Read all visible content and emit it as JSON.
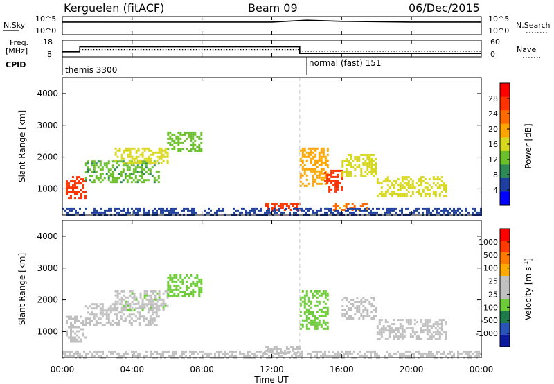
{
  "header": {
    "station": "Kerguelen (fitACF)",
    "beam": "Beam 09",
    "date": "06/Dec/2015"
  },
  "top_panels": {
    "nsky_label": "N.Sky",
    "nsearch_label": "N.Search",
    "nsky_tick_top": "10^5",
    "nsky_tick_bottom": "10^0",
    "nsearch_tick_top": "10^5",
    "nsearch_tick_bottom": "10^0",
    "freq_label_line1": "Freq.",
    "freq_label_line2": "[MHz]",
    "freq_tick_top": "18",
    "freq_tick_bottom": "8",
    "nave_label": "Nave",
    "nave_tick_top": "60",
    "nave_tick_bottom": "0",
    "cpid_label": "CPID",
    "cpid_mode1": "themis 3300",
    "cpid_mode2": "normal (fast) 151"
  },
  "x_axis": {
    "label": "Time UT",
    "ticks": [
      "00:00",
      "04:00",
      "08:00",
      "12:00",
      "16:00",
      "20:00",
      "00:00"
    ]
  },
  "y_axis": {
    "label": "Slant Range [km]",
    "ticks": [
      "1000",
      "2000",
      "3000",
      "4000"
    ]
  },
  "power_colorbar": {
    "label": "Power [dB]",
    "ticks": [
      "4",
      "8",
      "12",
      "16",
      "20",
      "24",
      "28"
    ]
  },
  "velocity_colorbar": {
    "label": "Velocity [m s",
    "label_sup": "-1",
    "label_end": "]",
    "ticks": [
      "1000",
      "500",
      "100",
      "25",
      "-25",
      "-100",
      "-500",
      "-1000"
    ]
  },
  "colors": {
    "power_scale": [
      "#0000ff",
      "#1f3fa0",
      "#2e8b57",
      "#6bbf2b",
      "#d8d820",
      "#ffa500",
      "#ff6a00",
      "#ff3300",
      "#ff0000"
    ],
    "velocity_scale": [
      "#0b1a9c",
      "#2a53b8",
      "#1c7a4b",
      "#6ecc3a",
      "#c0c0c0",
      "#c0c0c0",
      "#ffaa00",
      "#ff7a00",
      "#ff3a00",
      "#ff0000"
    ],
    "ground_scatter": "#a0a0a0"
  },
  "chart_data": [
    {
      "type": "line",
      "title": "N.Sky / N.Search",
      "x_unit": "hours UT",
      "x_range": [
        0,
        24
      ],
      "y_scale": "log",
      "ylim": [
        1,
        100000
      ],
      "series": [
        {
          "name": "N.Sky",
          "x": [
            0,
            2,
            4,
            8,
            12,
            14,
            16,
            20,
            24
          ],
          "y": [
            3000,
            3000,
            3000,
            3000,
            3000,
            10000,
            5000,
            3000,
            3000
          ]
        },
        {
          "name": "N.Search",
          "x": [
            0,
            24
          ],
          "y": [
            1,
            1
          ]
        }
      ]
    },
    {
      "type": "line",
      "title": "Freq. [MHz] / Nave",
      "x_unit": "hours UT",
      "x_range": [
        0,
        24
      ],
      "ylim_freq": [
        8,
        18
      ],
      "ylim_nave": [
        0,
        60
      ],
      "series": [
        {
          "name": "Freq.",
          "x": [
            0,
            1,
            1,
            13.6,
            13.6,
            24
          ],
          "y": [
            11,
            11,
            14,
            14,
            10,
            10
          ]
        },
        {
          "name": "Nave",
          "x": [
            0,
            1,
            1,
            13.6,
            13.6,
            24
          ],
          "y": [
            18,
            18,
            26,
            26,
            20,
            20
          ]
        }
      ]
    },
    {
      "type": "heatmap",
      "title": "Power [dB]",
      "x_unit": "hours UT",
      "x_range": [
        0,
        24
      ],
      "ylim": [
        180,
        4500
      ],
      "colorbar_range": [
        0,
        30
      ],
      "regions": [
        {
          "t0": 0.2,
          "t1": 1.3,
          "r0": 700,
          "r1": 1400,
          "value": 26
        },
        {
          "t0": 1.3,
          "t1": 5.5,
          "r0": 1200,
          "r1": 1900,
          "value": 10
        },
        {
          "t0": 3.0,
          "t1": 6.0,
          "r0": 1800,
          "r1": 2300,
          "value": 14
        },
        {
          "t0": 6.0,
          "t1": 8.0,
          "r0": 2200,
          "r1": 2800,
          "value": 12
        },
        {
          "t0": 11.5,
          "t1": 13.6,
          "r0": 300,
          "r1": 550,
          "value": 26
        },
        {
          "t0": 13.6,
          "t1": 15.2,
          "r0": 1100,
          "r1": 2300,
          "value": 18
        },
        {
          "t0": 15.0,
          "t1": 16.0,
          "r0": 900,
          "r1": 1600,
          "value": 24
        },
        {
          "t0": 16.0,
          "t1": 18.0,
          "r0": 1400,
          "r1": 2100,
          "value": 14
        },
        {
          "t0": 18.0,
          "t1": 22.0,
          "r0": 800,
          "r1": 1400,
          "value": 16
        },
        {
          "t0": 15.5,
          "t1": 17.5,
          "r0": 350,
          "r1": 550,
          "value": 20
        },
        {
          "t0": 0.0,
          "t1": 24.0,
          "r0": 180,
          "r1": 400,
          "value": 6
        }
      ]
    },
    {
      "type": "heatmap",
      "title": "Velocity [m s-1]",
      "x_unit": "hours UT",
      "x_range": [
        0,
        24
      ],
      "ylim": [
        180,
        4500
      ],
      "colorbar_range": [
        -1000,
        1000
      ],
      "regions": [
        {
          "t0": 0.2,
          "t1": 1.3,
          "r0": 700,
          "r1": 1500,
          "value": 80
        },
        {
          "t0": 1.3,
          "t1": 5.5,
          "r0": 1200,
          "r1": 1900,
          "value": -100
        },
        {
          "t0": 3.0,
          "t1": 6.0,
          "r0": 1700,
          "r1": 2300,
          "value": -200
        },
        {
          "t0": 6.0,
          "t1": 8.0,
          "r0": 2100,
          "r1": 2800,
          "value": -300
        },
        {
          "t0": 11.5,
          "t1": 13.6,
          "r0": 300,
          "r1": 550,
          "value": -80
        },
        {
          "t0": 13.6,
          "t1": 15.2,
          "r0": 1100,
          "r1": 2300,
          "value": -300
        },
        {
          "t0": 16.0,
          "t1": 18.0,
          "r0": 1400,
          "r1": 2100,
          "value": 0
        },
        {
          "t0": 18.0,
          "t1": 22.0,
          "r0": 800,
          "r1": 1400,
          "value": 0
        },
        {
          "t0": 0.0,
          "t1": 24.0,
          "r0": 180,
          "r1": 400,
          "value": 50
        }
      ]
    }
  ]
}
